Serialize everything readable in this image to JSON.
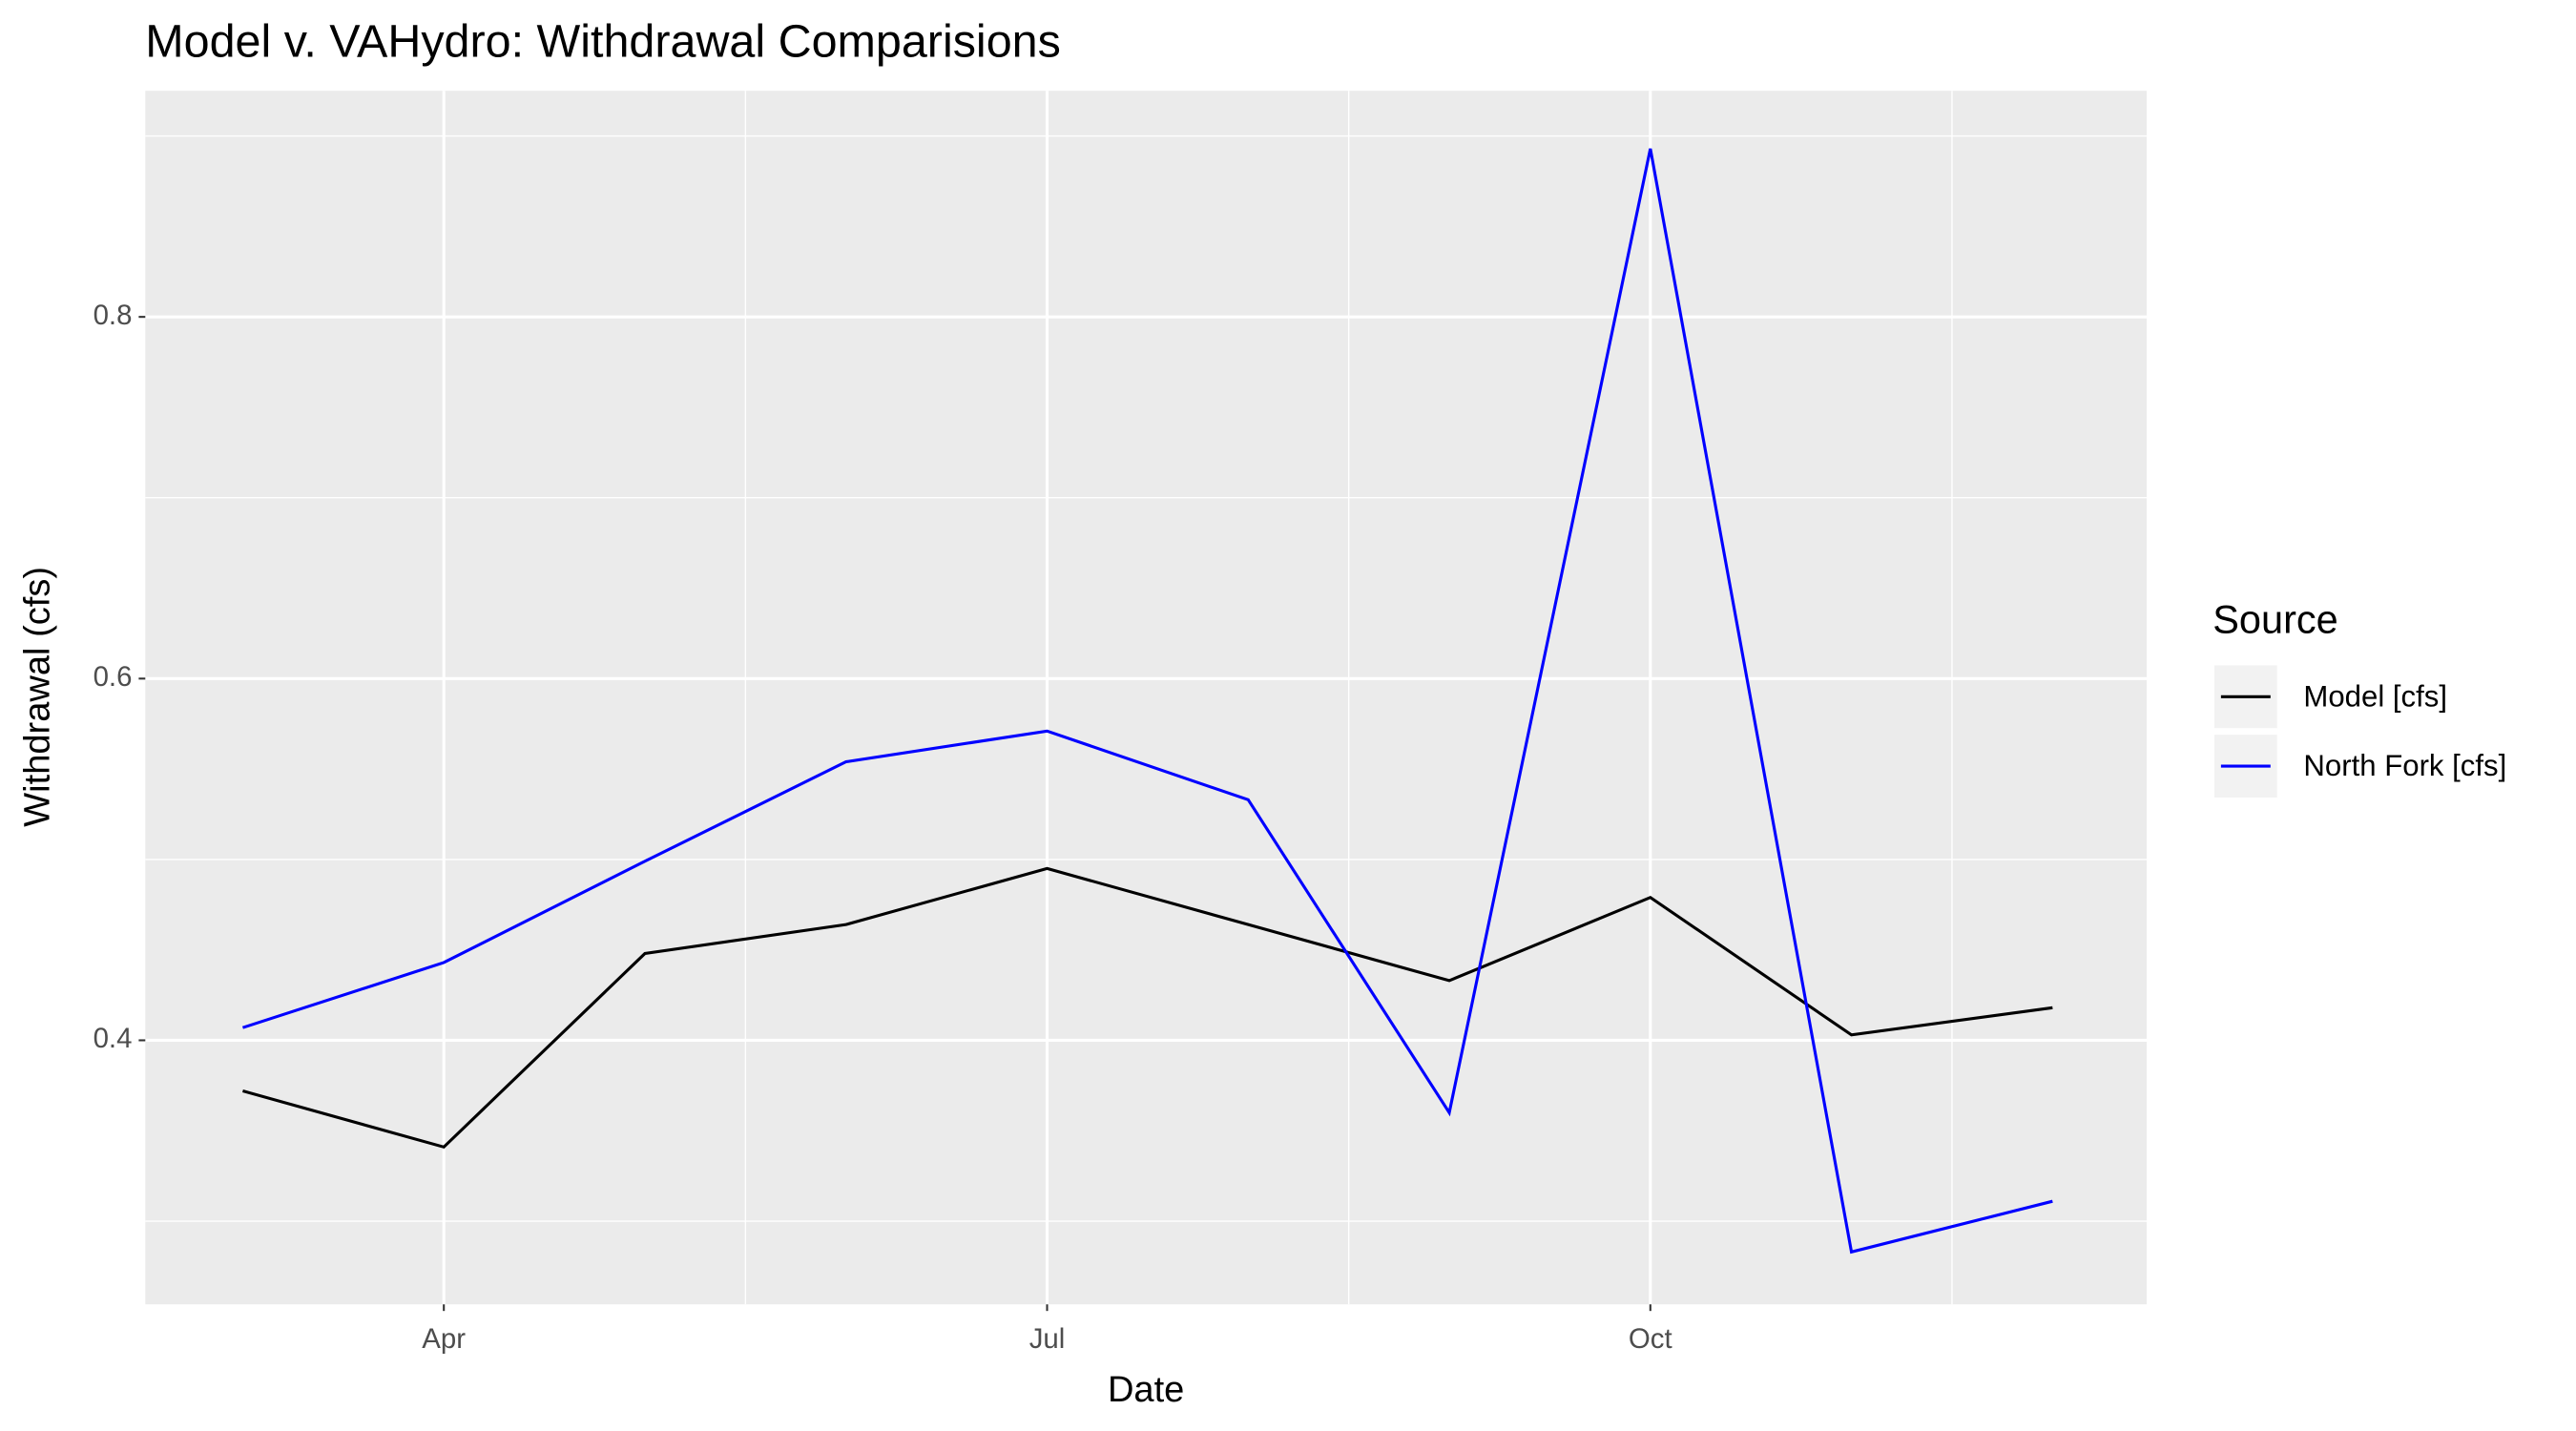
{
  "chart_data": {
    "type": "line",
    "title": "Model v. VAHydro: Withdrawal Comparisions",
    "x_label": "Date",
    "y_label": "Withdrawal (cfs)",
    "legend_title": "Source",
    "legend_position": "right",
    "grid": true,
    "categories": [
      null,
      "Apr",
      null,
      null,
      "Jul",
      null,
      null,
      "Oct",
      null,
      null
    ],
    "series": [
      {
        "name": "Model [cfs]",
        "color": "#000000",
        "values": [
          0.372,
          0.341,
          0.448,
          0.464,
          0.495,
          0.464,
          0.433,
          0.479,
          0.403,
          0.418
        ]
      },
      {
        "name": "North Fork [cfs]",
        "color": "#0000ff",
        "values": [
          0.407,
          0.443,
          0.499,
          0.554,
          0.571,
          0.533,
          0.36,
          0.893,
          0.283,
          0.311
        ]
      }
    ],
    "ylim": [
      0.254,
      0.925
    ],
    "yticks": [
      0.4,
      0.6,
      0.8
    ]
  }
}
